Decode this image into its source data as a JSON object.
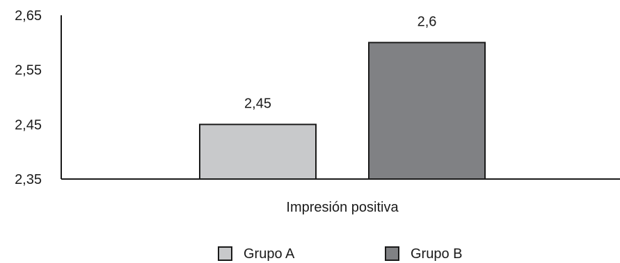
{
  "chart_data": {
    "type": "bar",
    "categories": [
      "Impresión positiva"
    ],
    "series": [
      {
        "name": "Grupo A",
        "values": [
          2.45
        ],
        "color": "#c8c9cb"
      },
      {
        "name": "Grupo B",
        "values": [
          2.6
        ],
        "color": "#808184"
      }
    ],
    "data_labels": [
      "2,45",
      "2,6"
    ],
    "title": "",
    "xlabel": "",
    "ylabel": "",
    "ylim": [
      2.35,
      2.65
    ],
    "yticks": [
      2.35,
      2.45,
      2.55,
      2.65
    ],
    "ytick_labels": [
      "2,35",
      "2,45",
      "2,55",
      "2,65"
    ],
    "grid": false,
    "legend_position": "bottom"
  }
}
